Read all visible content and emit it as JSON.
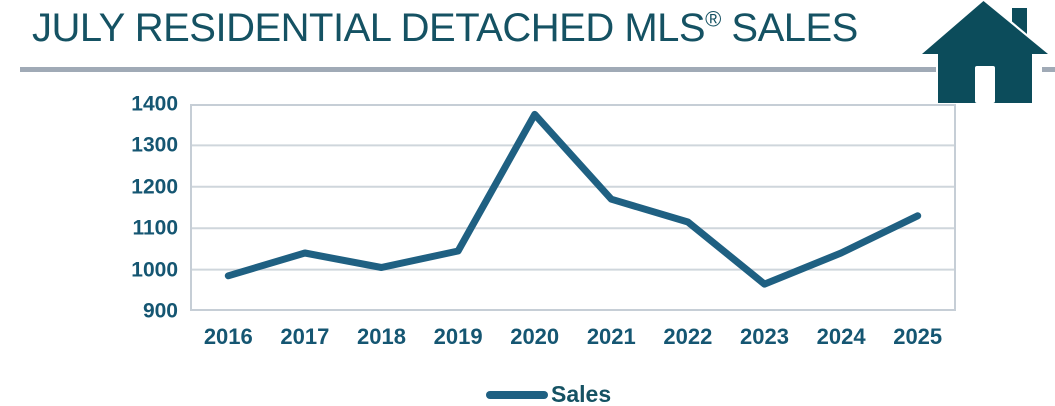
{
  "header": {
    "title_main": "JULY RESIDENTIAL DETACHED MLS",
    "registered_mark": "®",
    "title_suffix": " SALES"
  },
  "icons": {
    "house_icon": "house-icon"
  },
  "colors": {
    "accent_teal": "#155263",
    "axis_text": "#155672",
    "series_line": "#1F6082",
    "gridline": "#CFD6DC",
    "plot_border": "#C6CED6",
    "separator_gray": "#A0AAB6",
    "house_icon": "#0C4C5B"
  },
  "chart_data": {
    "type": "line",
    "title": "JULY RESIDENTIAL DETACHED MLS® SALES",
    "categories": [
      "2016",
      "2017",
      "2018",
      "2019",
      "2020",
      "2021",
      "2022",
      "2023",
      "2024",
      "2025"
    ],
    "series": [
      {
        "name": "Sales",
        "values": [
          985,
          1040,
          1005,
          1045,
          1375,
          1170,
          1115,
          965,
          1040,
          1130
        ]
      }
    ],
    "xlabel": "",
    "ylabel": "",
    "ylim": [
      900,
      1400
    ],
    "yticks": [
      900,
      1000,
      1100,
      1200,
      1300,
      1400
    ],
    "grid": true,
    "legend_position": "bottom"
  }
}
